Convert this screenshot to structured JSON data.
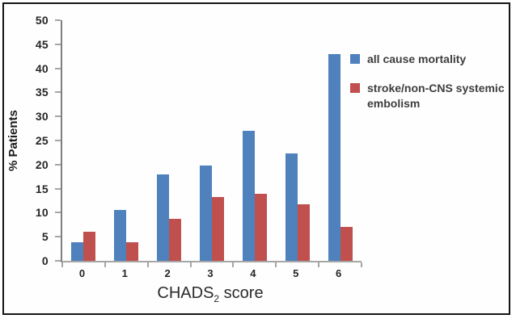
{
  "chart_data": {
    "type": "bar",
    "categories": [
      "0",
      "1",
      "2",
      "3",
      "4",
      "5",
      "6"
    ],
    "series": [
      {
        "name": "all cause mortality",
        "color": "#4f81bd",
        "values": [
          3.8,
          10.5,
          18.0,
          19.8,
          27.0,
          22.3,
          42.9
        ]
      },
      {
        "name": "stroke/non-CNS systemic embolism",
        "color": "#c0504d",
        "values": [
          6.0,
          3.8,
          8.7,
          13.3,
          13.9,
          11.8,
          7.0
        ]
      }
    ],
    "xlabel": "CHADS2 score",
    "xlabel_parts": {
      "main": "CHADS",
      "sub": "2",
      "rest": " score"
    },
    "ylabel": "% Patients",
    "ylim": [
      0,
      50
    ],
    "yticks": [
      0,
      5,
      10,
      15,
      20,
      25,
      30,
      35,
      40,
      45,
      50
    ],
    "grid": false,
    "legend_position": "right-top",
    "axis_color": "#7f7f7f",
    "tick_color": "#a6a6a6"
  }
}
